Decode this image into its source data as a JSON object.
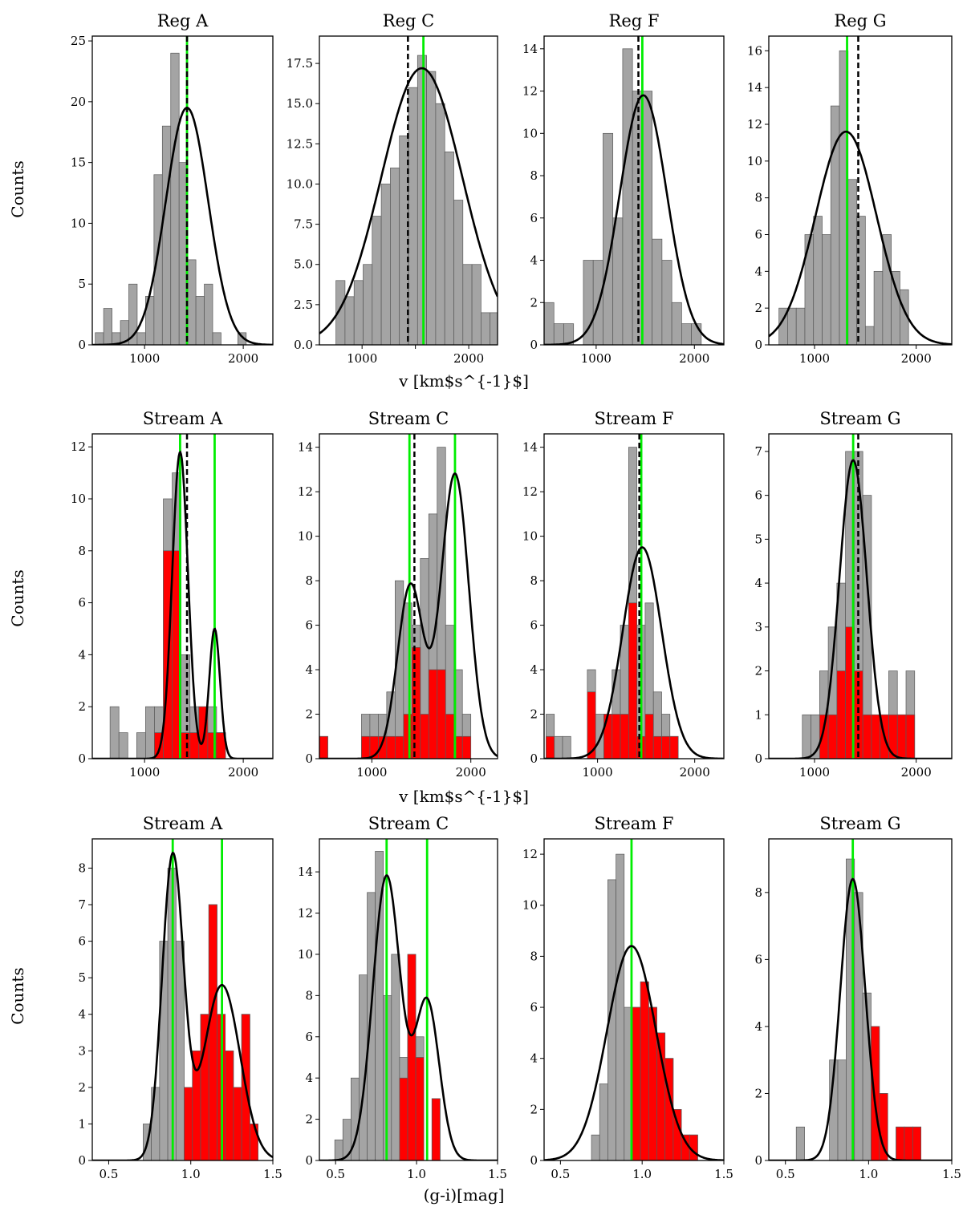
{
  "figure": {
    "ylabel": "Counts",
    "row_xlabels": [
      "v [km$s^{-1}$]",
      "v [km$s^{-1}$]",
      "(g-i)[mag]"
    ]
  },
  "chart_data": [
    {
      "type": "bar",
      "title": "Reg A",
      "xlim": [
        470,
        2300
      ],
      "ylim": [
        0,
        25.4
      ],
      "xticks": [
        1000,
        2000
      ],
      "xtick_labels": [
        "1000",
        "2000"
      ],
      "yticks": [
        0,
        5,
        10,
        15,
        20,
        25
      ],
      "ytick_labels": [
        "0",
        "5",
        "10",
        "15",
        "20",
        "25"
      ],
      "bins_start": 500,
      "bin_width": 85,
      "gray": [
        1,
        3,
        1,
        2,
        5,
        1,
        4,
        14,
        18,
        24,
        15,
        7,
        4,
        5,
        1,
        0,
        0,
        1,
        0,
        0
      ],
      "green_lines": [
        1430
      ],
      "dashed_lines": [
        1430
      ],
      "fit": [
        {
          "a": 19.5,
          "mu": 1430,
          "sigma": 215
        }
      ]
    },
    {
      "type": "bar",
      "title": "Reg C",
      "xlim": [
        600,
        2270
      ],
      "ylim": [
        0,
        19.2
      ],
      "xticks": [
        1000,
        1500,
        2000
      ],
      "xtick_labels": [
        "1000",
        "",
        "2000"
      ],
      "yticks": [
        0,
        2.5,
        5,
        7.5,
        10,
        12.5,
        15,
        17.5
      ],
      "ytick_labels": [
        "0.0",
        "2.5",
        "5.0",
        "7.5",
        "10.0",
        "12.5",
        "15.0",
        "17.5"
      ],
      "bins_start": 755,
      "bin_width": 85,
      "gray": [
        4,
        3,
        4,
        5,
        8,
        10,
        11,
        13,
        16,
        18,
        17,
        15,
        12,
        9,
        5,
        5,
        2,
        2
      ],
      "green_lines": [
        1575
      ],
      "dashed_lines": [
        1430
      ],
      "fit": [
        {
          "a": 17.2,
          "mu": 1560,
          "sigma": 380
        }
      ]
    },
    {
      "type": "bar",
      "title": "Reg F",
      "xlim": [
        470,
        2300
      ],
      "ylim": [
        0,
        14.6
      ],
      "xticks": [
        1000,
        2000
      ],
      "xtick_labels": [
        "1000",
        "2000"
      ],
      "yticks": [
        0,
        2,
        4,
        6,
        8,
        10,
        12,
        14
      ],
      "ytick_labels": [
        "0",
        "2",
        "4",
        "6",
        "8",
        "10",
        "12",
        "14"
      ],
      "bins_start": 470,
      "bin_width": 100,
      "gray": [
        2,
        1,
        1,
        0,
        4,
        4,
        10,
        6,
        14,
        12,
        12,
        5,
        4,
        2,
        1,
        1,
        0,
        0
      ],
      "green_lines": [
        1470
      ],
      "dashed_lines": [
        1430
      ],
      "fit": [
        {
          "a": 11.8,
          "mu": 1480,
          "sigma": 240
        }
      ]
    },
    {
      "type": "bar",
      "title": "Reg G",
      "xlim": [
        550,
        2350
      ],
      "ylim": [
        0,
        16.8
      ],
      "xticks": [
        1000,
        2000
      ],
      "xtick_labels": [
        "1000",
        "2000"
      ],
      "yticks": [
        0,
        2,
        4,
        6,
        8,
        10,
        12,
        14,
        16
      ],
      "ytick_labels": [
        "0",
        "2",
        "4",
        "6",
        "8",
        "10",
        "12",
        "14",
        "16"
      ],
      "bins_start": 650,
      "bin_width": 85,
      "gray": [
        2,
        2,
        2,
        6,
        7,
        6,
        13,
        16,
        9,
        7,
        1,
        4,
        6,
        4,
        3
      ],
      "green_lines": [
        1320
      ],
      "dashed_lines": [
        1430
      ],
      "fit": [
        {
          "a": 11.6,
          "mu": 1310,
          "sigma": 300
        }
      ]
    },
    {
      "type": "bar",
      "title": "Stream A",
      "xlim": [
        470,
        2300
      ],
      "ylim": [
        0,
        12.5
      ],
      "xticks": [
        1000,
        2000
      ],
      "xtick_labels": [
        "1000",
        "2000"
      ],
      "yticks": [
        0,
        2,
        4,
        6,
        8,
        10,
        12
      ],
      "ytick_labels": [
        "0",
        "2",
        "4",
        "6",
        "8",
        "10",
        "12"
      ],
      "bins_start": 650,
      "bin_width": 90,
      "gray": [
        2,
        1,
        0,
        1,
        2,
        2,
        10,
        11,
        4,
        2,
        2,
        2,
        1
      ],
      "red": [
        0,
        0,
        0,
        0,
        0,
        1,
        8,
        8,
        1,
        1,
        2,
        1,
        1
      ],
      "green_lines": [
        1360,
        1710
      ],
      "dashed_lines": [
        1430
      ],
      "fit": [
        {
          "a": 11.8,
          "mu": 1360,
          "sigma": 80
        },
        {
          "a": 5.0,
          "mu": 1710,
          "sigma": 55
        }
      ]
    },
    {
      "type": "bar",
      "title": "Stream C",
      "xlim": [
        470,
        2270
      ],
      "ylim": [
        0,
        14.6
      ],
      "xticks": [
        1000,
        2000
      ],
      "xtick_labels": [
        "1000",
        "2000"
      ],
      "yticks": [
        0,
        2,
        4,
        6,
        8,
        10,
        12,
        14
      ],
      "ytick_labels": [
        "0",
        "2",
        "4",
        "6",
        "8",
        "10",
        "12",
        "14"
      ],
      "bins_start": 470,
      "bin_width": 85,
      "gray": [
        1,
        0,
        0,
        0,
        0,
        2,
        2,
        2,
        3,
        8,
        7,
        6,
        9,
        11,
        14,
        6,
        4,
        2
      ],
      "red": [
        1,
        0,
        0,
        0,
        0,
        1,
        1,
        1,
        1,
        1,
        2,
        5,
        2,
        4,
        4,
        2,
        1,
        1
      ],
      "green_lines": [
        1380,
        1840
      ],
      "dashed_lines": [
        1430
      ],
      "fit": [
        {
          "a": 7.8,
          "mu": 1390,
          "sigma": 130
        },
        {
          "a": 12.8,
          "mu": 1840,
          "sigma": 140
        }
      ]
    },
    {
      "type": "bar",
      "title": "Stream F",
      "xlim": [
        450,
        2300
      ],
      "ylim": [
        0,
        14.6
      ],
      "xticks": [
        1000,
        2000
      ],
      "xtick_labels": [
        "1000",
        "2000"
      ],
      "yticks": [
        0,
        2,
        4,
        6,
        8,
        10,
        12,
        14
      ],
      "ytick_labels": [
        "0",
        "2",
        "4",
        "6",
        "8",
        "10",
        "12",
        "14"
      ],
      "bins_start": 470,
      "bin_width": 85,
      "gray": [
        2,
        1,
        1,
        0,
        0,
        4,
        2,
        2,
        4,
        6,
        14,
        6,
        7,
        3,
        2,
        1
      ],
      "red": [
        1,
        0,
        0,
        0,
        0,
        3,
        0,
        2,
        2,
        2,
        7,
        1,
        2,
        1,
        1,
        1
      ],
      "green_lines": [
        1450
      ],
      "dashed_lines": [
        1430
      ],
      "fit": [
        {
          "a": 9.5,
          "mu": 1460,
          "sigma": 200
        }
      ]
    },
    {
      "type": "bar",
      "title": "Stream G",
      "xlim": [
        550,
        2350
      ],
      "ylim": [
        0,
        7.4
      ],
      "xticks": [
        1000,
        2000
      ],
      "xtick_labels": [
        "1000",
        "2000"
      ],
      "yticks": [
        0,
        1,
        2,
        3,
        4,
        5,
        6,
        7
      ],
      "ytick_labels": [
        "0",
        "1",
        "2",
        "3",
        "4",
        "5",
        "6",
        "7"
      ],
      "bins_start": 880,
      "bin_width": 85,
      "gray": [
        1,
        1,
        2,
        3,
        4,
        7,
        7,
        6,
        1,
        1,
        2,
        1,
        2
      ],
      "red": [
        0,
        0,
        1,
        1,
        2,
        3,
        2,
        1,
        1,
        1,
        1,
        1,
        1
      ],
      "green_lines": [
        1380
      ],
      "dashed_lines": [
        1430
      ],
      "fit": [
        {
          "a": 6.8,
          "mu": 1380,
          "sigma": 135
        }
      ]
    },
    {
      "type": "bar",
      "title": "Stream A",
      "xlim": [
        0.4,
        1.5
      ],
      "ylim": [
        0,
        8.8
      ],
      "xticks": [
        0.5,
        1.0,
        1.5
      ],
      "xtick_labels": [
        "0.5",
        "1.0",
        "1.5"
      ],
      "yticks": [
        0,
        1,
        2,
        3,
        4,
        5,
        6,
        7,
        8
      ],
      "ytick_labels": [
        "0",
        "1",
        "2",
        "3",
        "4",
        "5",
        "6",
        "7",
        "8"
      ],
      "bins_start": 0.71,
      "bin_width": 0.05,
      "gray": [
        1,
        2,
        6,
        8,
        6,
        2,
        3,
        4,
        7,
        4,
        3,
        2,
        4,
        1
      ],
      "red": [
        0,
        0,
        0,
        0,
        0,
        2,
        3,
        4,
        7,
        4,
        3,
        2,
        4,
        1
      ],
      "green_lines": [
        0.89,
        1.19
      ],
      "dashed_lines": [],
      "fit": [
        {
          "a": 8.3,
          "mu": 0.89,
          "sigma": 0.065
        },
        {
          "a": 4.8,
          "mu": 1.19,
          "sigma": 0.11
        }
      ]
    },
    {
      "type": "bar",
      "title": "Stream C",
      "xlim": [
        0.4,
        1.5
      ],
      "ylim": [
        0,
        15.6
      ],
      "xticks": [
        0.5,
        1.0,
        1.5
      ],
      "xtick_labels": [
        "0.5",
        "1.0",
        "1.5"
      ],
      "yticks": [
        0,
        2,
        4,
        6,
        8,
        10,
        12,
        14
      ],
      "ytick_labels": [
        "0",
        "2",
        "4",
        "6",
        "8",
        "10",
        "12",
        "14"
      ],
      "bins_start": 0.495,
      "bin_width": 0.05,
      "gray": [
        1,
        2,
        4,
        9,
        13,
        15,
        8,
        10,
        5,
        7,
        6,
        0,
        3
      ],
      "red": [
        0,
        0,
        0,
        0,
        0,
        0,
        0,
        0,
        4,
        10,
        5,
        0,
        3
      ],
      "green_lines": [
        0.815,
        1.065
      ],
      "dashed_lines": [],
      "fit": [
        {
          "a": 13.8,
          "mu": 0.815,
          "sigma": 0.085
        },
        {
          "a": 7.7,
          "mu": 1.065,
          "sigma": 0.075
        }
      ]
    },
    {
      "type": "bar",
      "title": "Stream F",
      "xlim": [
        0.4,
        1.5
      ],
      "ylim": [
        0,
        12.6
      ],
      "xticks": [
        0.5,
        1.0,
        1.5
      ],
      "xtick_labels": [
        "0.5",
        "1.0",
        "1.5"
      ],
      "yticks": [
        0,
        2,
        4,
        6,
        8,
        10,
        12
      ],
      "ytick_labels": [
        "0",
        "2",
        "4",
        "6",
        "8",
        "10",
        "12"
      ],
      "bins_start": 0.69,
      "bin_width": 0.05,
      "gray": [
        1,
        3,
        11,
        12,
        6,
        6,
        7,
        6,
        5,
        4,
        2,
        1,
        1
      ],
      "red": [
        0,
        0,
        0,
        0,
        0,
        6,
        7,
        6,
        5,
        4,
        2,
        1,
        1
      ],
      "green_lines": [
        0.935
      ],
      "dashed_lines": [],
      "fit": [
        {
          "a": 8.4,
          "mu": 0.935,
          "sigma": 0.15
        }
      ]
    },
    {
      "type": "bar",
      "title": "Stream G",
      "xlim": [
        0.4,
        1.5
      ],
      "ylim": [
        0,
        9.6
      ],
      "xticks": [
        0.5,
        1.0,
        1.5
      ],
      "xtick_labels": [
        "0.5",
        "1.0",
        "1.5"
      ],
      "yticks": [
        0,
        2,
        4,
        6,
        8
      ],
      "ytick_labels": [
        "0",
        "2",
        "4",
        "6",
        "8"
      ],
      "bins_start": 0.565,
      "bin_width": 0.05,
      "gray": [
        1,
        0,
        0,
        0,
        3,
        3,
        9,
        8,
        5,
        4,
        2,
        0,
        1,
        1,
        1
      ],
      "red": [
        0,
        0,
        0,
        0,
        0,
        0,
        0,
        0,
        0,
        4,
        2,
        0,
        1,
        1,
        1
      ],
      "green_lines": [
        0.905
      ],
      "dashed_lines": [],
      "fit": [
        {
          "a": 8.4,
          "mu": 0.905,
          "sigma": 0.075
        }
      ]
    }
  ]
}
